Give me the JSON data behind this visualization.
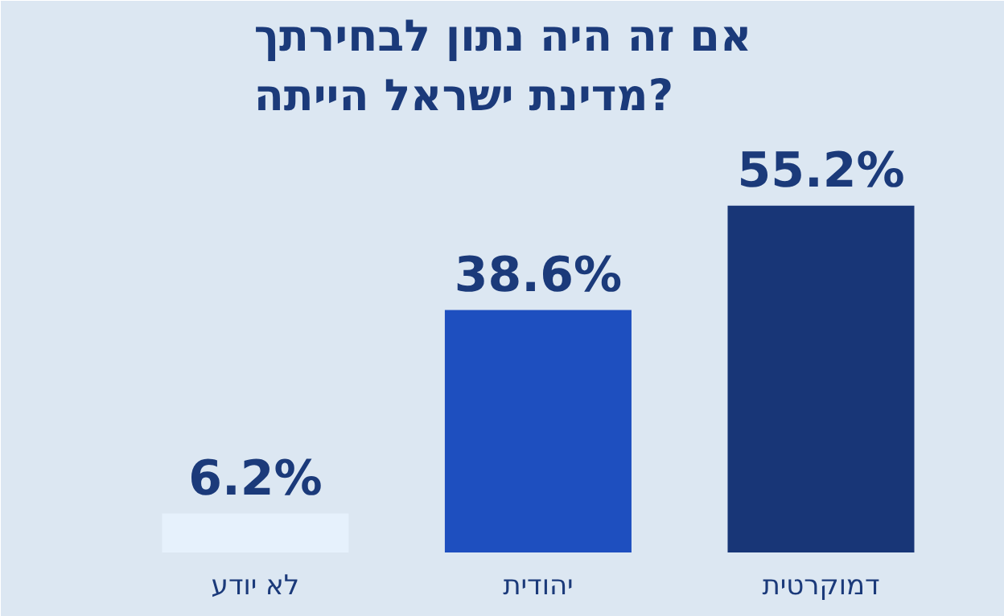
{
  "chart_data": {
    "type": "bar",
    "title": "אם זה היה נתון לבחירתך\nמדינת ישראל הייתה?",
    "categories": [
      "לא יודע",
      "יהודית",
      "דמוקרטית"
    ],
    "values": [
      6.2,
      38.6,
      55.2
    ],
    "colors": [
      "#e6f1fc",
      "#1e4fbf",
      "#183677"
    ],
    "value_labels": [
      "6.2%",
      "38.6%",
      "55.2%"
    ]
  }
}
